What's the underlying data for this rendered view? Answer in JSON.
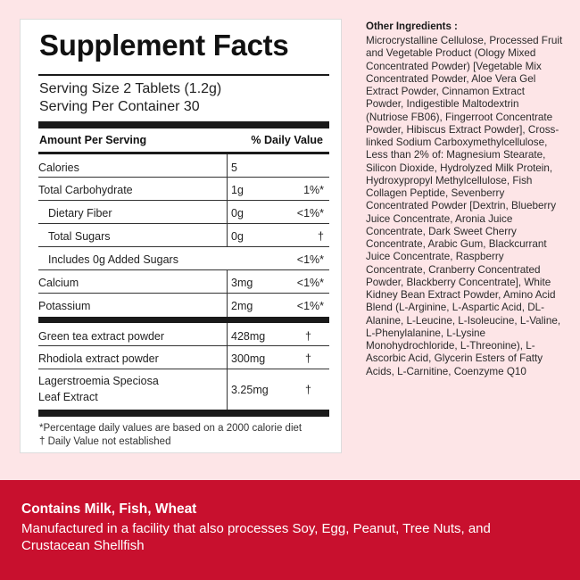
{
  "facts": {
    "title": "Supplement Facts",
    "serving_size": "Serving Size 2 Tablets (1.2g)",
    "servings_per_container": "Serving Per Container 30",
    "header_left": "Amount Per Serving",
    "header_right": "% Daily Value",
    "rows": [
      {
        "label": "Calories",
        "amount": "5",
        "dv": ""
      },
      {
        "label": "Total Carbohydrate",
        "amount": "1g",
        "dv": "1%*"
      },
      {
        "label": "Dietary Fiber",
        "amount": "0g",
        "dv": "<1%*"
      },
      {
        "label": "Total Sugars",
        "amount": "0g",
        "dv": "†"
      },
      {
        "label": "Includes 0g Added Sugars",
        "amount": "",
        "dv": "<1%*"
      },
      {
        "label": "Calcium",
        "amount": "3mg",
        "dv": "<1%*"
      },
      {
        "label": "Potassium",
        "amount": "2mg",
        "dv": "<1%*"
      }
    ],
    "extracts": [
      {
        "label": "Green tea extract powder",
        "amount": "428mg",
        "dv": "†"
      },
      {
        "label": "Rhodiola extract powder",
        "amount": "300mg",
        "dv": "†"
      },
      {
        "label_line1": "Lagerstroemia Speciosa",
        "label_line2": "Leaf Extract",
        "amount": "3.25mg",
        "dv": "†"
      }
    ],
    "footnote_1": "*Percentage daily values are based on a 2000 calorie diet",
    "footnote_2": "† Daily Value not established"
  },
  "other_ingredients": {
    "title": "Other Ingredients :",
    "text": "Microcrystalline Cellulose, Processed Fruit and Vegetable Product (Ology Mixed Concentrated Powder) [Vegetable Mix Concentrated Powder, Aloe Vera Gel Extract Powder, Cinnamon Extract Powder, Indigestible Maltodextrin (Nutriose FB06), Fingerroot Concentrate Powder, Hibiscus Extract Powder], Cross-linked Sodium Carboxymethylcellulose, Less than 2% of: Magnesium Stearate, Silicon Dioxide, Hydrolyzed Milk Protein, Hydroxypropyl Methylcellulose, Fish Collagen Peptide, Sevenberry Concentrated Powder [Dextrin, Blueberry Juice Concentrate, Aronia Juice Concentrate, Dark Sweet Cherry Concentrate, Arabic Gum, Blackcurrant Juice Concentrate, Raspberry Concentrate, Cranberry Concentrated Powder, Blackberry Concentrate], White Kidney Bean Extract Powder, Amino Acid Blend (L-Arginine, L-Aspartic Acid, DL-Alanine, L-Leucine, L-Isoleucine, L-Valine, L-Phenylalanine, L-Lysine Monohydrochloride, L-Threonine), L-Ascorbic Acid, Glycerin Esters of Fatty Acids, L-Carnitine, Coenzyme Q10"
  },
  "allergens": {
    "title": "Contains Milk, Fish, Wheat",
    "text": "Manufactured in a facility that also processes Soy, Egg, Peanut, Tree Nuts, and Crustacean Shellfish"
  },
  "colors": {
    "background": "#fde5e7",
    "banner": "#c8102e",
    "panel": "#ffffff"
  }
}
